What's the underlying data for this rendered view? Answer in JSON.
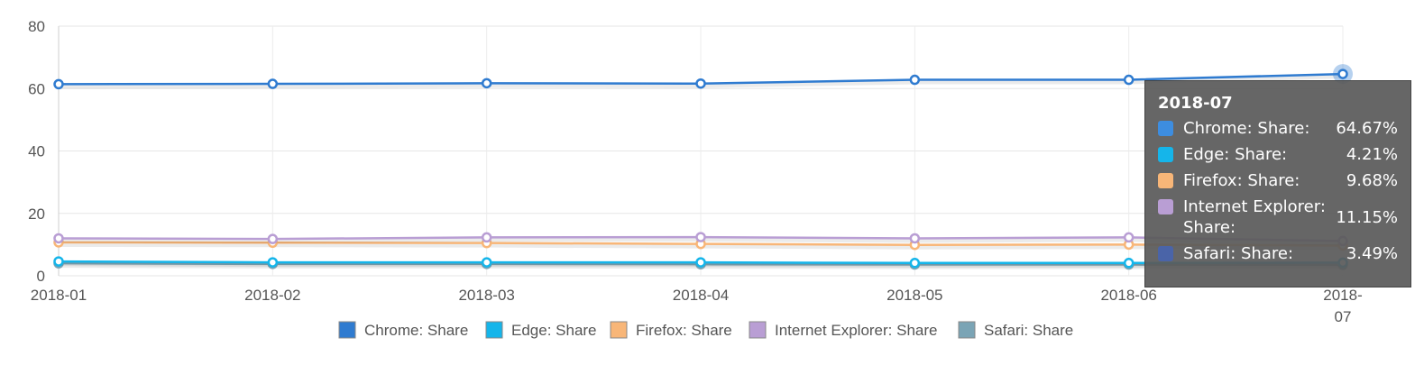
{
  "chart_data": {
    "type": "line",
    "categories": [
      "2018-01",
      "2018-02",
      "2018-03",
      "2018-04",
      "2018-05",
      "2018-06",
      "2018-07"
    ],
    "ylim": [
      0,
      80
    ],
    "yticks": [
      0,
      20,
      40,
      60,
      80
    ],
    "grid": true,
    "legend_position": "bottom",
    "series": [
      {
        "name": "Chrome: Share",
        "color": "#2f7bd0",
        "values": [
          61.4,
          61.5,
          61.7,
          61.6,
          62.8,
          62.8,
          64.67
        ]
      },
      {
        "name": "Edge: Share",
        "color": "#15b5ea",
        "values": [
          4.6,
          4.3,
          4.3,
          4.3,
          4.1,
          4.1,
          4.21
        ]
      },
      {
        "name": "Firefox: Share",
        "color": "#f8b678",
        "values": [
          10.7,
          10.6,
          10.5,
          10.2,
          9.9,
          10.0,
          9.68
        ]
      },
      {
        "name": "Internet Explorer: Share",
        "color": "#b99ed4",
        "values": [
          12.0,
          11.8,
          12.3,
          12.4,
          12.0,
          12.3,
          11.15
        ]
      },
      {
        "name": "Safari: Share",
        "color": "#7aa4b5",
        "values": [
          4.0,
          3.8,
          3.8,
          3.7,
          3.6,
          3.6,
          3.49
        ]
      }
    ]
  },
  "tooltip": {
    "title": "2018-07",
    "rows": [
      {
        "label": "Chrome: Share:",
        "value": "64.67%",
        "color": "#3d8de0"
      },
      {
        "label": "Edge: Share:",
        "value": "4.21%",
        "color": "#15b5ea"
      },
      {
        "label": "Firefox: Share:",
        "value": "9.68%",
        "color": "#f8b678"
      },
      {
        "label": "Internet Explorer: Share:",
        "value": "11.15%",
        "color": "#b99ed4"
      },
      {
        "label": "Safari: Share:",
        "value": "3.49%",
        "color": "#4a64a8"
      }
    ]
  }
}
